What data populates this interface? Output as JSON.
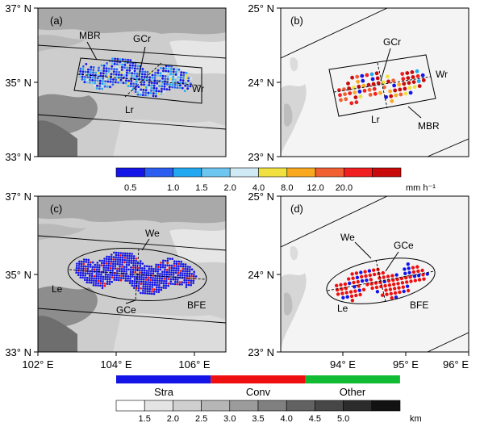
{
  "panels": {
    "a": {
      "label": "(a)",
      "annotations": {
        "mbr": "MBR",
        "gc": "GCr",
        "w": "Wr",
        "l": "Lr"
      }
    },
    "b": {
      "label": "(b)",
      "annotations": {
        "mbr": "MBR",
        "gc": "GCr",
        "w": "Wr",
        "l": "Lr"
      }
    },
    "c": {
      "label": "(c)",
      "annotations": {
        "bfe": "BFE",
        "gc": "GCe",
        "w": "We",
        "l": "Le"
      }
    },
    "d": {
      "label": "(d)",
      "annotations": {
        "bfe": "BFE",
        "gc": "GCe",
        "w": "We",
        "l": "Le"
      }
    }
  },
  "axes": {
    "left_lat_ticks": [
      "37° N",
      "35° N",
      "33° N"
    ],
    "right_lat_ticks": [
      "25° N",
      "24° N",
      "23° N"
    ],
    "left_lon_ticks": [
      "102° E",
      "104° E",
      "106° E"
    ],
    "right_lon_ticks": [
      "94° E",
      "95° E",
      "96° E"
    ]
  },
  "rain_colorbar": {
    "colors": [
      "#1515e8",
      "#2a5df0",
      "#22a8f0",
      "#6cc6f0",
      "#cfe9f5",
      "#f0e040",
      "#f9a820",
      "#f06030",
      "#f02020",
      "#c80a0a"
    ],
    "labels": [
      "0.5",
      "1.0",
      "1.5",
      "2.0",
      "4.0",
      "8.0",
      "12.0",
      "20.0"
    ],
    "unit": "mm h⁻¹"
  },
  "type_legend": {
    "items": [
      {
        "label": "Stra",
        "color": "#1414e6"
      },
      {
        "label": "Conv",
        "color": "#ee1010"
      },
      {
        "label": "Other",
        "color": "#11bb33"
      }
    ]
  },
  "terrain_colorbar": {
    "colors": [
      "#ffffff",
      "#e4e4e4",
      "#cfcfcf",
      "#b6b6b6",
      "#9c9c9c",
      "#808080",
      "#626262",
      "#474747",
      "#2c2c2c",
      "#121212"
    ],
    "labels": [
      "1.5",
      "2.0",
      "2.5",
      "3.0",
      "3.5",
      "4.0",
      "4.5",
      "5.0"
    ],
    "unit": "km"
  }
}
